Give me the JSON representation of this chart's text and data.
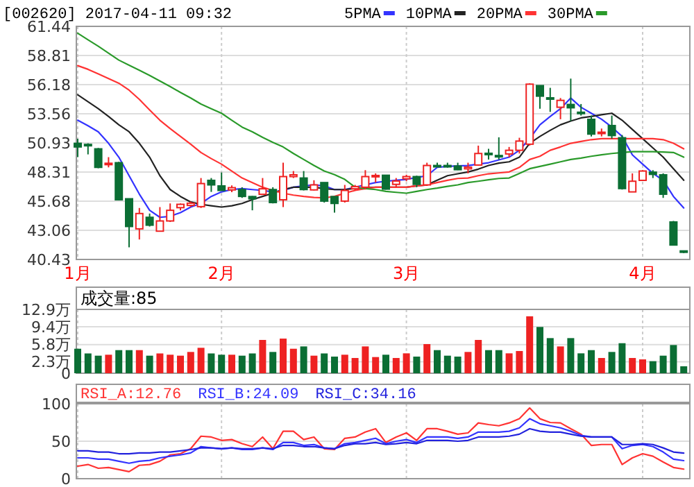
{
  "chart_data": [
    {
      "type": "candlestick",
      "title": "[002620] 2017-04-11 09:32",
      "categories": [
        "1月",
        null,
        null,
        null,
        null,
        null,
        null,
        null,
        null,
        null,
        null,
        null,
        null,
        null,
        "2月",
        null,
        null,
        null,
        null,
        null,
        null,
        null,
        null,
        null,
        null,
        null,
        null,
        null,
        null,
        null,
        null,
        null,
        "3月",
        null,
        null,
        null,
        null,
        null,
        null,
        null,
        null,
        null,
        null,
        null,
        null,
        null,
        null,
        null,
        null,
        null,
        null,
        null,
        null,
        null,
        null,
        "4月",
        null,
        null,
        null,
        null
      ],
      "ohlc": [
        [
          50.9,
          51.31,
          49.65,
          50.57
        ],
        [
          50.8,
          50.9,
          49.9,
          50.75
        ],
        [
          50.4,
          50.48,
          48.65,
          48.73
        ],
        [
          49.0,
          49.65,
          48.73,
          49.1
        ],
        [
          49.15,
          49.23,
          45.75,
          45.81
        ],
        [
          45.9,
          45.9,
          41.52,
          43.4
        ],
        [
          43.19,
          45.07,
          42.23,
          44.57
        ],
        [
          44.23,
          44.57,
          43.4,
          43.52
        ],
        [
          42.98,
          45.15,
          42.98,
          43.9
        ],
        [
          43.9,
          45.48,
          43.81,
          44.86
        ],
        [
          45.1,
          45.48,
          44.86,
          45.4
        ],
        [
          45.3,
          45.65,
          45.15,
          45.5
        ],
        [
          45.19,
          47.77,
          45.07,
          47.27
        ],
        [
          47.56,
          47.77,
          46.52,
          47.15
        ],
        [
          47.06,
          48.27,
          46.65,
          46.65
        ],
        [
          46.7,
          47.1,
          46.5,
          46.9
        ],
        [
          46.73,
          46.94,
          45.98,
          46.11
        ],
        [
          46.1,
          46.15,
          44.86,
          45.9
        ],
        [
          46.3,
          47.77,
          46.3,
          46.8
        ],
        [
          46.73,
          46.94,
          45.48,
          45.56
        ],
        [
          45.81,
          49.15,
          45.15,
          47.9
        ],
        [
          47.9,
          48.4,
          47.77,
          48.06
        ],
        [
          47.77,
          48.4,
          46.65,
          46.73
        ],
        [
          46.7,
          47.57,
          46.65,
          47.15
        ],
        [
          47.36,
          47.36,
          45.56,
          45.69
        ],
        [
          46.1,
          46.11,
          44.65,
          45.48
        ],
        [
          45.69,
          47.15,
          45.56,
          46.65
        ],
        [
          46.8,
          47.15,
          46.65,
          47.0
        ],
        [
          46.94,
          48.48,
          46.73,
          47.9
        ],
        [
          47.9,
          48.19,
          47.36,
          48.0
        ],
        [
          48.02,
          48.02,
          46.73,
          46.77
        ],
        [
          47.2,
          47.77,
          46.94,
          47.5
        ],
        [
          47.7,
          48.07,
          47.48,
          47.9
        ],
        [
          47.9,
          47.98,
          46.94,
          47.2
        ],
        [
          47.15,
          49.15,
          47.07,
          48.9
        ],
        [
          48.9,
          49.15,
          48.75,
          48.85
        ],
        [
          48.9,
          49.15,
          48.7,
          48.8
        ],
        [
          48.85,
          49.15,
          48.48,
          48.52
        ],
        [
          48.6,
          49.15,
          48.19,
          48.75
        ],
        [
          48.94,
          50.69,
          48.9,
          49.98
        ],
        [
          50.0,
          50.4,
          49.44,
          49.9
        ],
        [
          49.8,
          51.44,
          49.44,
          49.7
        ],
        [
          49.94,
          50.57,
          49.65,
          50.27
        ],
        [
          50.27,
          51.4,
          49.98,
          51.1
        ],
        [
          50.82,
          56.31,
          50.69,
          56.23
        ],
        [
          56.1,
          56.1,
          54.02,
          55.15
        ],
        [
          55.0,
          55.9,
          53.73,
          54.9
        ],
        [
          54.15,
          54.98,
          53.07,
          54.77
        ],
        [
          54.4,
          56.73,
          52.9,
          54.1
        ],
        [
          53.7,
          54.44,
          53.4,
          53.6
        ],
        [
          53.06,
          53.4,
          51.52,
          51.73
        ],
        [
          51.8,
          52.23,
          51.52,
          51.9
        ],
        [
          52.5,
          53.4,
          51.32,
          51.6
        ],
        [
          51.4,
          51.65,
          46.73,
          46.82
        ],
        [
          46.52,
          48.19,
          46.52,
          47.48
        ],
        [
          47.56,
          48.48,
          47.5,
          48.4
        ],
        [
          48.3,
          48.48,
          47.77,
          48.1
        ],
        [
          48.06,
          48.19,
          45.98,
          46.31
        ],
        [
          43.81,
          43.9,
          41.7,
          41.73
        ],
        [
          41.2,
          41.2,
          41.0,
          41.1
        ]
      ],
      "colors": [
        "#0b6e34",
        "#0b6e34",
        "#0b6e34",
        "#ee2222",
        "#0b6e34",
        "#0b6e34",
        "#ee2222",
        "#0b6e34",
        "#ee2222",
        "#ee2222",
        "#ee2222",
        "#ee2222",
        "#ee2222",
        "#0b6e34",
        "#0b6e34",
        "#ee2222",
        "#0b6e34",
        "#0b6e34",
        "#ee2222",
        "#0b6e34",
        "#ee2222",
        "#ee2222",
        "#0b6e34",
        "#ee2222",
        "#0b6e34",
        "#0b6e34",
        "#ee2222",
        "#ee2222",
        "#ee2222",
        "#ee2222",
        "#0b6e34",
        "#ee2222",
        "#ee2222",
        "#0b6e34",
        "#ee2222",
        "#0b6e34",
        "#0b6e34",
        "#0b6e34",
        "#ee2222",
        "#ee2222",
        "#0b6e34",
        "#0b6e34",
        "#ee2222",
        "#ee2222",
        "#ee2222",
        "#0b6e34",
        "#0b6e34",
        "#ee2222",
        "#0b6e34",
        "#0b6e34",
        "#0b6e34",
        "#ee2222",
        "#0b6e34",
        "#0b6e34",
        "#ee2222",
        "#ee2222",
        "#0b6e34",
        "#0b6e34",
        "#0b6e34",
        "#0b6e34"
      ],
      "ylim": [
        40.43,
        61.44
      ],
      "yticks": [
        40.43,
        43.06,
        45.68,
        48.31,
        50.93,
        53.56,
        56.18,
        58.81,
        61.44
      ],
      "grid": true,
      "legend": "top right",
      "series": [
        {
          "name": "5PMA",
          "type": "line",
          "color": "#3333ff",
          "values": [
            52.98,
            52.48,
            51.94,
            50.9,
            49.65,
            47.98,
            46.32,
            44.86,
            44.23,
            44.32,
            44.65,
            45.15,
            45.48,
            46.11,
            46.52,
            46.73,
            46.82,
            46.73,
            46.65,
            46.52,
            46.65,
            46.94,
            47.07,
            47.15,
            47.07,
            46.73,
            46.73,
            46.94,
            47.15,
            47.36,
            47.48,
            47.57,
            47.65,
            47.82,
            47.98,
            48.73,
            48.82,
            48.86,
            48.9,
            49.02,
            49.15,
            49.4,
            49.65,
            50.27,
            51.32,
            52.57,
            53.32,
            54.02,
            54.98,
            54.15,
            53.61,
            53.07,
            52.36,
            51.52,
            49.86,
            49.02,
            48.19,
            47.57,
            46.11,
            45.07
          ]
        },
        {
          "name": "10PMA",
          "type": "line",
          "color": "#222222",
          "values": [
            55.27,
            54.65,
            54.02,
            53.32,
            52.57,
            51.94,
            50.9,
            49.65,
            47.98,
            46.73,
            46.11,
            45.61,
            45.4,
            45.27,
            45.15,
            45.27,
            45.48,
            45.82,
            46.11,
            46.4,
            46.73,
            46.94,
            46.94,
            46.94,
            46.82,
            46.73,
            46.73,
            46.82,
            46.9,
            46.94,
            46.94,
            46.94,
            46.94,
            47.07,
            47.15,
            47.57,
            47.98,
            48.15,
            48.32,
            48.57,
            48.9,
            49.11,
            49.23,
            49.65,
            50.9,
            51.52,
            52.07,
            52.57,
            52.9,
            53.19,
            53.32,
            53.48,
            53.61,
            52.98,
            52.15,
            51.32,
            50.48,
            49.65,
            48.61,
            47.57
          ]
        },
        {
          "name": "20PMA",
          "type": "line",
          "color": "#ff3333",
          "values": [
            57.9,
            57.57,
            57.15,
            56.73,
            56.32,
            55.69,
            54.86,
            53.9,
            52.98,
            52.23,
            51.52,
            50.82,
            50.07,
            49.52,
            49.02,
            48.4,
            47.77,
            47.36,
            46.94,
            46.65,
            46.4,
            46.23,
            46.11,
            46.02,
            45.98,
            46.11,
            46.4,
            46.65,
            46.82,
            46.94,
            46.94,
            46.94,
            46.94,
            47.07,
            47.15,
            47.36,
            47.57,
            47.73,
            47.77,
            47.98,
            48.15,
            48.23,
            48.32,
            48.73,
            49.44,
            49.73,
            50.27,
            50.57,
            50.9,
            51.07,
            51.23,
            51.32,
            51.32,
            51.32,
            51.32,
            51.32,
            51.32,
            51.23,
            50.9,
            50.4
          ]
        },
        {
          "name": "30PMA",
          "type": "line",
          "color": "#2a9a2a",
          "values": [
            60.82,
            60.23,
            59.65,
            59.02,
            58.4,
            57.94,
            57.48,
            57.02,
            56.52,
            56.02,
            55.48,
            54.98,
            54.44,
            54.02,
            53.61,
            52.98,
            52.36,
            51.94,
            51.44,
            50.98,
            50.57,
            49.98,
            49.44,
            48.9,
            48.4,
            48.07,
            47.65,
            46.94,
            46.82,
            46.73,
            46.57,
            46.48,
            46.4,
            46.57,
            46.73,
            46.86,
            47.02,
            47.15,
            47.36,
            47.48,
            47.61,
            47.73,
            47.77,
            48.19,
            48.61,
            48.82,
            49.02,
            49.23,
            49.44,
            49.57,
            49.73,
            49.86,
            49.98,
            50.07,
            50.15,
            50.15,
            50.15,
            50.11,
            50.07,
            49.65
          ]
        }
      ]
    },
    {
      "type": "bar",
      "title": "成交量:85",
      "categories": [
        null,
        null,
        null,
        null,
        null,
        null,
        null,
        null,
        null,
        null,
        null,
        null,
        null,
        null,
        null,
        null,
        null,
        null,
        null,
        null,
        null,
        null,
        null,
        null,
        null,
        null,
        null,
        null,
        null,
        null,
        null,
        null,
        null,
        null,
        null,
        null,
        null,
        null,
        null,
        null,
        null,
        null,
        null,
        null,
        null,
        null,
        null,
        null,
        null,
        null,
        null,
        null,
        null,
        null,
        null,
        null,
        null,
        null,
        null,
        null
      ],
      "tick_labels": "y",
      "values": [
        4.95,
        4.0,
        3.55,
        3.74,
        4.67,
        4.67,
        4.67,
        3.55,
        4.0,
        3.74,
        3.55,
        4.3,
        5.14,
        4.0,
        3.74,
        3.74,
        3.55,
        4.0,
        6.73,
        4.3,
        7.0,
        4.95,
        5.42,
        3.55,
        4.0,
        3.36,
        3.74,
        3.08,
        5.42,
        3.27,
        3.74,
        3.08,
        4.02,
        3.36,
        5.89,
        4.67,
        3.55,
        3.36,
        4.3,
        6.73,
        4.67,
        4.67,
        4.02,
        4.49,
        11.5,
        9.35,
        7.1,
        5.42,
        7.1,
        4.02,
        4.67,
        3.08,
        4.3,
        6.07,
        3.08,
        2.8,
        2.43,
        3.55,
        5.7,
        1.4
      ],
      "colors": [
        "#0b6e34",
        "#0b6e34",
        "#0b6e34",
        "#ee2222",
        "#0b6e34",
        "#0b6e34",
        "#ee2222",
        "#0b6e34",
        "#ee2222",
        "#ee2222",
        "#ee2222",
        "#ee2222",
        "#ee2222",
        "#0b6e34",
        "#0b6e34",
        "#ee2222",
        "#0b6e34",
        "#0b6e34",
        "#ee2222",
        "#0b6e34",
        "#ee2222",
        "#ee2222",
        "#0b6e34",
        "#ee2222",
        "#0b6e34",
        "#0b6e34",
        "#ee2222",
        "#ee2222",
        "#ee2222",
        "#ee2222",
        "#0b6e34",
        "#ee2222",
        "#ee2222",
        "#0b6e34",
        "#ee2222",
        "#0b6e34",
        "#0b6e34",
        "#0b6e34",
        "#ee2222",
        "#ee2222",
        "#0b6e34",
        "#0b6e34",
        "#ee2222",
        "#ee2222",
        "#ee2222",
        "#0b6e34",
        "#0b6e34",
        "#ee2222",
        "#0b6e34",
        "#0b6e34",
        "#0b6e34",
        "#ee2222",
        "#0b6e34",
        "#0b6e34",
        "#ee2222",
        "#ee2222",
        "#0b6e34",
        "#0b6e34",
        "#0b6e34",
        "#0b6e34"
      ],
      "ylim": [
        0,
        12.9
      ],
      "yticks": [
        0,
        {
          "value": 2.3,
          "label": "2.3万"
        },
        {
          "value": 5.8,
          "label": "5.8万"
        },
        {
          "value": 9.4,
          "label": "9.4万"
        },
        {
          "value": 12.9,
          "label": "12.9万"
        }
      ],
      "grid": true
    },
    {
      "type": "line",
      "categories": [
        null,
        null,
        null,
        null,
        null,
        null,
        null,
        null,
        null,
        null,
        null,
        null,
        null,
        null,
        null,
        null,
        null,
        null,
        null,
        null,
        null,
        null,
        null,
        null,
        null,
        null,
        null,
        null,
        null,
        null,
        null,
        null,
        null,
        null,
        null,
        null,
        null,
        null,
        null,
        null,
        null,
        null,
        null,
        null,
        null,
        null,
        null,
        null,
        null,
        null,
        null,
        null,
        null,
        null,
        null,
        null,
        null,
        null,
        null,
        null
      ],
      "tick_labels": "y",
      "ylim": [
        0,
        100
      ],
      "yticks": [
        0,
        50,
        100
      ],
      "grid": "x",
      "ref_lines": [
        {
          "axis": "y",
          "value": 50,
          "color": "#dddddd"
        }
      ],
      "legend": "top left",
      "series": [
        {
          "name": "RSI_A:12.76",
          "color": "#ff3333",
          "values": [
            16.7,
            18.9,
            13.9,
            15.0,
            12.2,
            9.4,
            17.8,
            18.9,
            23.3,
            31.7,
            33.3,
            40.0,
            56.7,
            55.6,
            51.1,
            52.2,
            46.7,
            42.8,
            55.6,
            40.0,
            63.3,
            63.3,
            52.2,
            55.6,
            40.0,
            38.9,
            53.9,
            55.6,
            62.2,
            66.7,
            48.3,
            55.6,
            61.1,
            51.1,
            66.7,
            66.7,
            63.3,
            59.4,
            61.1,
            74.4,
            72.2,
            70.6,
            74.4,
            80.0,
            94.4,
            80.0,
            75.0,
            74.4,
            66.7,
            59.4,
            44.4,
            45.6,
            45.6,
            18.9,
            27.8,
            33.3,
            30.0,
            22.2,
            15.0,
            12.76
          ]
        },
        {
          "name": "RSI_B:24.09",
          "color": "#3333ff",
          "values": [
            27.8,
            27.8,
            26.1,
            26.1,
            23.3,
            20.6,
            23.3,
            24.4,
            27.8,
            30.0,
            31.7,
            34.4,
            42.8,
            41.1,
            40.0,
            41.1,
            38.9,
            38.9,
            41.1,
            38.9,
            48.3,
            48.3,
            44.4,
            45.6,
            41.1,
            40.0,
            46.7,
            48.3,
            51.1,
            53.9,
            46.7,
            50.0,
            52.2,
            48.3,
            55.6,
            55.6,
            55.6,
            53.9,
            55.6,
            62.2,
            62.2,
            62.2,
            63.3,
            67.8,
            80.0,
            73.3,
            70.6,
            67.8,
            63.3,
            57.8,
            55.6,
            55.6,
            55.6,
            40.0,
            44.4,
            45.6,
            42.8,
            35.6,
            26.1,
            24.09
          ]
        },
        {
          "name": "RSI_C:34.16",
          "color": "#2222dd",
          "values": [
            37.2,
            37.2,
            35.6,
            35.6,
            33.3,
            33.3,
            34.4,
            34.4,
            35.6,
            35.6,
            37.2,
            38.9,
            41.1,
            41.1,
            40.0,
            41.1,
            40.0,
            40.0,
            41.1,
            40.0,
            44.4,
            44.4,
            42.8,
            42.8,
            41.1,
            40.0,
            44.4,
            46.7,
            46.7,
            48.3,
            45.6,
            46.7,
            48.3,
            46.7,
            51.1,
            51.1,
            51.1,
            50.0,
            51.1,
            55.6,
            55.6,
            55.6,
            56.7,
            59.4,
            66.7,
            63.3,
            62.2,
            62.2,
            59.4,
            56.7,
            55.6,
            55.6,
            55.6,
            45.6,
            45.6,
            46.7,
            45.6,
            41.1,
            35.6,
            34.16
          ]
        }
      ]
    }
  ]
}
